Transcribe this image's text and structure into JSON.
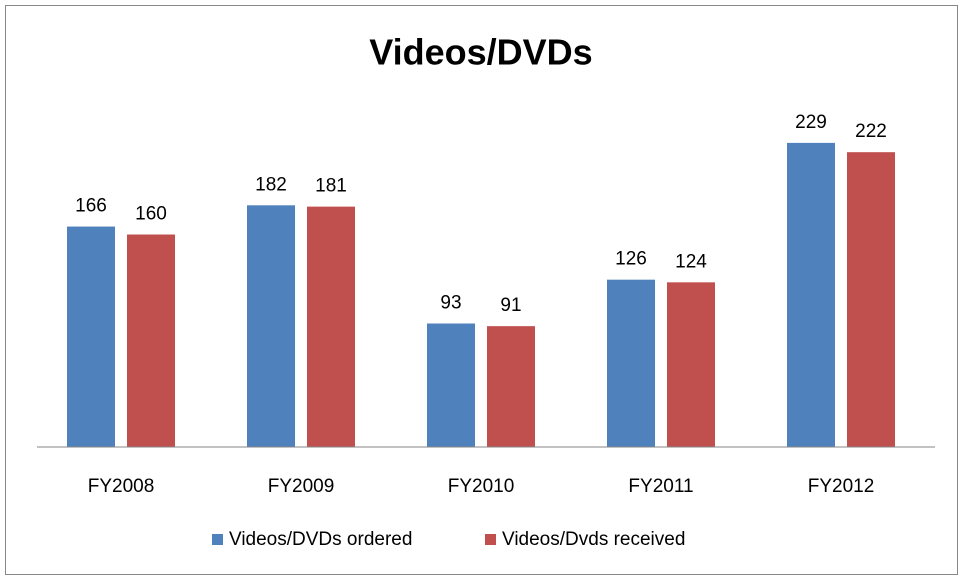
{
  "chart_data": {
    "type": "bar",
    "title": "Videos/DVDs",
    "categories": [
      "FY2008",
      "FY2009",
      "FY2010",
      "FY2011",
      "FY2012"
    ],
    "series": [
      {
        "name": "Videos/DVDs ordered",
        "color": "#4f81bd",
        "values": [
          166,
          182,
          93,
          126,
          229
        ]
      },
      {
        "name": "Videos/Dvds received",
        "color": "#c0504d",
        "values": [
          160,
          181,
          91,
          124,
          222
        ]
      }
    ],
    "ylim": [
      0,
      250
    ],
    "legend": "bottom"
  }
}
